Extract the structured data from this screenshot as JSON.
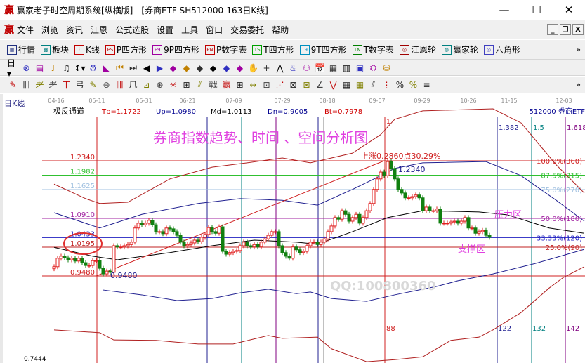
{
  "window": {
    "logo": "赢",
    "title": "赢家老子时空周期系统[纵横版] - [券商ETF  SH512000-163日K线]",
    "minimize": "—",
    "maximize": "☐",
    "close": "✕"
  },
  "menu": {
    "logo": "赢",
    "items": [
      "文件",
      "浏览",
      "资讯",
      "江恩",
      "公式选股",
      "设置",
      "工具",
      "窗口",
      "交易委托",
      "帮助"
    ],
    "mdi": [
      "_",
      "❐",
      "X"
    ]
  },
  "toolbar1": [
    {
      "icon": "grid-icon",
      "badge": "▦",
      "label": "行情",
      "color": "#203080"
    },
    {
      "icon": "blocks-icon",
      "badge": "▩",
      "label": "板块",
      "color": "#008080"
    },
    {
      "icon": "kline-icon",
      "badge": "⫶",
      "label": "K线",
      "color": "#c00000"
    },
    {
      "icon": "ps-icon",
      "badge": "PS",
      "label": "P四方形",
      "color": "#c00000"
    },
    {
      "icon": "p9-icon",
      "badge": "P9",
      "label": "9P四方形",
      "color": "#a000a0"
    },
    {
      "icon": "pn-icon",
      "badge": "PN",
      "label": "P数字表",
      "color": "#c00000"
    },
    {
      "icon": "ts-icon",
      "badge": "TS",
      "label": "T四方形",
      "color": "#00a000"
    },
    {
      "icon": "t9-icon",
      "badge": "T9",
      "label": "9T四方形",
      "color": "#0090c0"
    },
    {
      "icon": "tn-icon",
      "badge": "TN",
      "label": "T数字表",
      "color": "#008000"
    },
    {
      "icon": "gann-wheel-icon",
      "badge": "◎",
      "label": "江恩轮",
      "color": "#a00000"
    },
    {
      "icon": "winner-wheel-icon",
      "badge": "◍",
      "label": "赢家轮",
      "color": "#008080"
    },
    {
      "icon": "hexagon-icon",
      "badge": "◎",
      "label": "六角形",
      "color": "#4040c0"
    }
  ],
  "toolbar1_more": "»",
  "toolbar2": [
    "日▾",
    "⊗",
    "▤",
    "♩",
    "♫",
    "↕▾",
    "⚙",
    "◣",
    "⏮",
    "⏭",
    "◀",
    "▶",
    "◆",
    "◆",
    "◆",
    "◆",
    "◆",
    "◆",
    "✋",
    "+",
    "⋀",
    "♨",
    "⚇",
    "📅",
    "▦",
    "▥",
    "▣",
    "⛭",
    "⛁"
  ],
  "toolbar3": [
    "✎",
    "卌",
    "⺹",
    "⺹",
    "丅",
    "弓",
    "✎",
    "⊖",
    "卌",
    "⺇",
    "⊿",
    "⊕",
    "✳",
    "⊞",
    "⫽",
    "戦",
    "赢",
    "⊞",
    "↔",
    "⊡",
    "⋰",
    "⊠",
    "⊠",
    "∠",
    "⋁",
    "▦",
    "▦",
    "⫽",
    "⋮",
    "%",
    "%",
    "≡"
  ],
  "toolbar3_more": "»",
  "chart": {
    "period_label": "日K线",
    "dates": [
      "04-16",
      "05-11",
      "05-31",
      "06-21",
      "07-09",
      "07-29",
      "08-18",
      "09-07",
      "09-29",
      "10-26",
      "11-15",
      "12-03"
    ],
    "indicator": {
      "name": "极反通道",
      "tp": "Tp=1.1722",
      "up": "Up=1.0980",
      "md": "Md=1.0113",
      "dn": "Dn=0.9005",
      "bt": "Bt=0.7978"
    },
    "symbol": "512000  券商ETF",
    "headline": "券商指数趋势、时间 、空间分析图",
    "rise_label": "上涨0.2860点30.29%",
    "peak_label": "1.2340",
    "low_label": "0.9480",
    "bottom_price": "0.7444",
    "peak_marker": "1",
    "levels_left": [
      {
        "text": "1.2340",
        "price": 1.234,
        "color": "#d02020"
      },
      {
        "text": "1.1982",
        "price": 1.1982,
        "color": "#30c030"
      },
      {
        "text": "1.1625",
        "price": 1.1625,
        "color": "#a0c0e0"
      },
      {
        "text": "1.0910",
        "price": 1.091,
        "color": "#a020a0"
      },
      {
        "text": "1.0433",
        "price": 1.0433,
        "color": "#2020c0"
      },
      {
        "text": "1.0195",
        "price": 1.0195,
        "color": "#c02020"
      },
      {
        "text": "0.9480",
        "price": 0.948,
        "color": "#d02020"
      }
    ],
    "levels_right": [
      {
        "text": "100.0%(360)",
        "price": 1.234,
        "color": "#d02020"
      },
      {
        "text": "87.5%(315)",
        "price": 1.1982,
        "color": "#30c030"
      },
      {
        "text": "75.0%(270)",
        "price": 1.1625,
        "color": "#a0c0e0"
      },
      {
        "text": "50.0%(180)",
        "price": 1.091,
        "color": "#a020a0"
      },
      {
        "text": "33.33%(120)",
        "price": 1.0433,
        "color": "#2020c0"
      },
      {
        "text": "25.0%(90)",
        "price": 1.0195,
        "color": "#c02020"
      }
    ],
    "fib_time": [
      "1.382",
      "1.5",
      "1.618"
    ],
    "cycle_counts": [
      "88",
      "122",
      "132",
      "142"
    ],
    "resistance_label": "压力区",
    "support_label": "支撑区",
    "annotation_color": "#e040e0",
    "watermark": "QQ:100800360"
  },
  "chart_data": {
    "type": "candlestick",
    "closes": [
      0.971,
      0.992,
      0.997,
      0.993,
      0.988,
      0.992,
      0.985,
      0.992,
      0.981,
      0.974,
      0.974,
      0.986,
      0.986,
      0.967,
      0.953,
      0.96,
      0.957,
      1.023,
      1.02,
      1.02,
      1.023,
      1.026,
      1.032,
      1.067,
      1.079,
      1.075,
      1.079,
      1.086,
      1.075,
      1.058,
      1.058,
      1.053,
      1.067,
      1.065,
      1.058,
      1.049,
      1.032,
      1.023,
      1.026,
      1.03,
      1.037,
      1.033,
      1.044,
      1.051,
      1.068,
      1.058,
      1.054,
      1.07,
      1.009,
      1.002,
      1.006,
      1.009,
      1.011,
      1.023,
      1.032,
      1.023,
      1.02,
      1.026,
      1.02,
      1.032,
      1.04,
      1.049,
      1.058,
      1.058,
      1.023,
      1.006,
      0.997,
      0.992,
      1.02,
      1.013,
      1.006,
      1.009,
      1.023,
      1.032,
      1.032,
      1.026,
      1.032,
      1.04,
      1.058,
      1.072,
      1.093,
      1.089,
      1.11,
      1.101,
      1.084,
      1.093,
      1.101,
      1.079,
      1.093,
      1.11,
      1.128,
      1.163,
      1.189,
      1.206,
      1.197,
      1.232,
      1.215,
      1.189,
      1.163,
      1.154,
      1.142,
      1.142,
      1.145,
      1.149,
      1.142,
      1.11,
      1.119,
      1.11,
      1.11,
      1.114,
      1.079,
      1.079,
      1.079,
      1.082,
      1.084,
      1.079,
      1.084,
      1.093,
      1.067,
      1.067,
      1.054,
      1.058,
      1.061,
      1.049,
      1.044
    ],
    "ylim": [
      0.7444,
      1.37
    ],
    "lines": [
      {
        "color": "#b02020",
        "points": [
          [
            0,
            1.176
          ],
          [
            9,
            1.14
          ],
          [
            13,
            1.128
          ],
          [
            21,
            1.131
          ],
          [
            33,
            1.189
          ],
          [
            45,
            1.218
          ],
          [
            55,
            1.229
          ],
          [
            65,
            1.241
          ],
          [
            73,
            1.229
          ],
          [
            85,
            1.253
          ],
          [
            93,
            1.299
          ],
          [
            97,
            1.337
          ],
          [
            105,
            1.358
          ],
          [
            125,
            1.363
          ],
          [
            133,
            1.328
          ],
          [
            143,
            1.224
          ],
          [
            151,
            1.154
          ]
        ]
      },
      {
        "color": "#202090",
        "points": [
          [
            0,
            1.105
          ],
          [
            13,
            1.067
          ],
          [
            25,
            1.101
          ],
          [
            41,
            1.128
          ],
          [
            53,
            1.14
          ],
          [
            65,
            1.136
          ],
          [
            75,
            1.124
          ],
          [
            85,
            1.163
          ],
          [
            93,
            1.197
          ],
          [
            97,
            1.215
          ],
          [
            105,
            1.229
          ],
          [
            123,
            1.232
          ],
          [
            133,
            1.197
          ],
          [
            143,
            1.136
          ],
          [
            151,
            1.084
          ]
        ]
      },
      {
        "color": "#000000",
        "points": [
          [
            0,
            1.019
          ],
          [
            11,
            0.997
          ],
          [
            18,
            0.988
          ],
          [
            33,
            1.006
          ],
          [
            45,
            1.023
          ],
          [
            57,
            1.037
          ],
          [
            69,
            1.032
          ],
          [
            75,
            1.027
          ],
          [
            85,
            1.058
          ],
          [
            95,
            1.093
          ],
          [
            105,
            1.11
          ],
          [
            121,
            1.107
          ],
          [
            129,
            1.1
          ],
          [
            141,
            1.067
          ],
          [
            151,
            1.054
          ]
        ]
      },
      {
        "color": "#202090",
        "points": [
          [
            14,
            0.913
          ],
          [
            25,
            0.901
          ],
          [
            35,
            0.887
          ],
          [
            45,
            0.892
          ],
          [
            53,
            0.906
          ],
          [
            61,
            0.915
          ],
          [
            69,
            0.904
          ],
          [
            73,
            0.908
          ],
          [
            79,
            0.892
          ],
          [
            89,
            0.885
          ],
          [
            97,
            0.901
          ],
          [
            109,
            0.922
          ],
          [
            115,
            0.936
          ],
          [
            125,
            0.953
          ],
          [
            137,
            0.979
          ],
          [
            151,
            1.014
          ]
        ]
      },
      {
        "color": "#b02020",
        "points": [
          [
            0,
            0.814
          ],
          [
            13,
            0.807
          ],
          [
            17,
            0.789
          ],
          [
            29,
            0.788
          ],
          [
            41,
            0.779
          ],
          [
            51,
            0.779
          ],
          [
            61,
            0.8
          ],
          [
            65,
            0.793
          ],
          [
            75,
            0.796
          ],
          [
            79,
            0.767
          ],
          [
            89,
            0.735
          ],
          [
            97,
            0.74
          ],
          [
            105,
            0.747
          ],
          [
            113,
            0.788
          ],
          [
            121,
            0.796
          ],
          [
            125,
            0.814
          ],
          [
            133,
            0.857
          ],
          [
            141,
            0.918
          ],
          [
            145,
            0.944
          ],
          [
            151,
            0.971
          ]
        ]
      }
    ],
    "trendline": [
      [
        12,
        0.948
      ],
      [
        94,
        1.234
      ]
    ]
  }
}
